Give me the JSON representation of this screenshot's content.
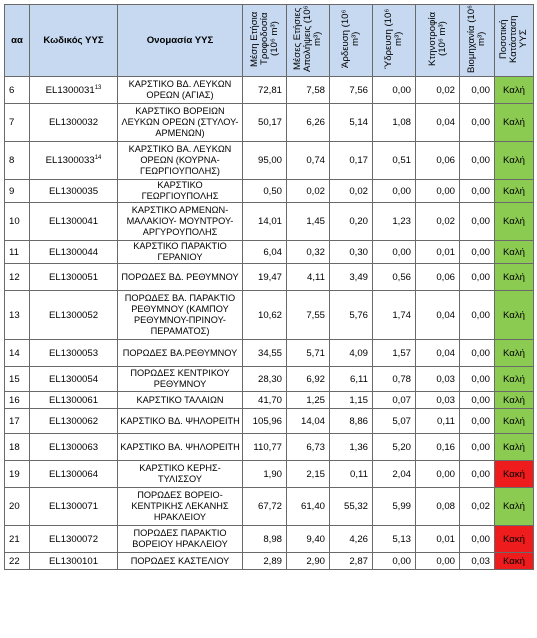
{
  "headers": {
    "aa": "αα",
    "code": "Κωδικός ΥΥΣ",
    "name": "Ονομασία ΥΥΣ",
    "recharge": "Μέση Ετήσια Τροφοδοσία (10⁶ m³)",
    "abstraction": "Μέσες Ετήσιες Απολήψεις (10⁶ m³)",
    "irrigation": "Άρδευση (10⁶ m³)",
    "water_supply": "Ύδρευση (10⁶ m³)",
    "livestock": "Κτηνοτροφία (10⁶ m³)",
    "industry": "Βιομηχανία (10⁶ m³)",
    "status": "Ποσοτική Κατάσταση ΥΥΣ"
  },
  "status_colors": {
    "good": "#8ccb52",
    "bad": "#ee1c1c"
  },
  "rows": [
    {
      "aa": "6",
      "code": "EL1300031",
      "sup": "13",
      "name": "ΚΑΡΣΤΙΚΟ ΒΔ. ΛΕΥΚΩΝ ΟΡΕΩΝ (ΑΓΙΑΣ)",
      "recharge": "72,81",
      "abstraction": "7,58",
      "irrigation": "7,56",
      "water_supply": "0,00",
      "livestock": "0,02",
      "industry": "0,00",
      "status": "Καλή",
      "state": "good"
    },
    {
      "aa": "7",
      "code": "EL1300032",
      "sup": "",
      "name": "ΚΑΡΣΤΙΚΟ ΒΟΡΕΙΩΝ ΛΕΥΚΩΝ ΟΡΕΩΝ (ΣΤΥΛΟΥ-ΑΡΜΕΝΩΝ)",
      "recharge": "50,17",
      "abstraction": "6,26",
      "irrigation": "5,14",
      "water_supply": "1,08",
      "livestock": "0,04",
      "industry": "0,00",
      "status": "Καλή",
      "state": "good"
    },
    {
      "aa": "8",
      "code": "EL1300033",
      "sup": "14",
      "name": "ΚΑΡΣΤΙΚΟ ΒΑ. ΛΕΥΚΩΝ ΟΡΕΩΝ (ΚΟΥΡΝΑ-ΓΕΩΡΓΙΟΥΠΟΛΗΣ)",
      "recharge": "95,00",
      "abstraction": "0,74",
      "irrigation": "0,17",
      "water_supply": "0,51",
      "livestock": "0,06",
      "industry": "0,00",
      "status": "Καλή",
      "state": "good"
    },
    {
      "aa": "9",
      "code": "EL1300035",
      "sup": "",
      "name": "ΚΑΡΣΤΙΚΟ ΓΕΩΡΓΙΟΥΠΟΛΗΣ",
      "recharge": "0,50",
      "abstraction": "0,02",
      "irrigation": "0,02",
      "water_supply": "0,00",
      "livestock": "0,00",
      "industry": "0,00",
      "status": "Καλή",
      "state": "good"
    },
    {
      "aa": "10",
      "code": "EL1300041",
      "sup": "",
      "name": "ΚΑΡΣΤΙΚΟ ΑΡΜΕΝΩΝ-ΜΑΛΑΚΙΟΥ- ΜΟΥΝΤΡΟΥ-ΑΡΓΥΡΟΥΠΟΛΗΣ",
      "recharge": "14,01",
      "abstraction": "1,45",
      "irrigation": "0,20",
      "water_supply": "1,23",
      "livestock": "0,02",
      "industry": "0,00",
      "status": "Καλή",
      "state": "good"
    },
    {
      "aa": "11",
      "code": "EL1300044",
      "sup": "",
      "name": "ΚΑΡΣΤΙΚΟ ΠΑΡΑΚΤΙΟ ΓΕΡΑΝΙΟΥ",
      "recharge": "6,04",
      "abstraction": "0,32",
      "irrigation": "0,30",
      "water_supply": "0,00",
      "livestock": "0,01",
      "industry": "0,00",
      "status": "Καλή",
      "state": "good"
    },
    {
      "aa": "12",
      "code": "EL1300051",
      "sup": "",
      "name": "ΠΟΡΩΔΕΣ ΒΔ. ΡΕΘΥΜΝΟΥ",
      "recharge": "19,47",
      "abstraction": "4,11",
      "irrigation": "3,49",
      "water_supply": "0,56",
      "livestock": "0,06",
      "industry": "0,00",
      "status": "Καλή",
      "state": "good"
    },
    {
      "aa": "13",
      "code": "EL1300052",
      "sup": "",
      "name": "ΠΟΡΩΔΕΣ ΒΑ. ΠΑΡΑΚΤΙΟ ΡΕΘΥΜΝΟΥ (ΚΑΜΠΟΥ ΡΕΘΥΜΝΟΥ-ΠΡΙΝΟΥ-ΠΕΡΑΜΑΤΟΣ)",
      "recharge": "10,62",
      "abstraction": "7,55",
      "irrigation": "5,76",
      "water_supply": "1,74",
      "livestock": "0,04",
      "industry": "0,00",
      "status": "Καλή",
      "state": "good"
    },
    {
      "aa": "14",
      "code": "EL1300053",
      "sup": "",
      "name": "ΠΟΡΩΔΕΣ ΒΑ.ΡΕΘΥΜΝΟΥ",
      "recharge": "34,55",
      "abstraction": "5,71",
      "irrigation": "4,09",
      "water_supply": "1,57",
      "livestock": "0,04",
      "industry": "0,00",
      "status": "Καλή",
      "state": "good"
    },
    {
      "aa": "15",
      "code": "EL1300054",
      "sup": "",
      "name": "ΠΟΡΩΔΕΣ ΚΕΝΤΡΙΚΟΥ ΡΕΘΥΜΝΟΥ",
      "recharge": "28,30",
      "abstraction": "6,92",
      "irrigation": "6,11",
      "water_supply": "0,78",
      "livestock": "0,03",
      "industry": "0,00",
      "status": "Καλή",
      "state": "good"
    },
    {
      "aa": "16",
      "code": "EL1300061",
      "sup": "",
      "name": "ΚΑΡΣΤΙΚΟ ΤΑΛΑΙΩΝ",
      "recharge": "41,70",
      "abstraction": "1,25",
      "irrigation": "1,15",
      "water_supply": "0,07",
      "livestock": "0,03",
      "industry": "0,00",
      "status": "Καλή",
      "state": "good"
    },
    {
      "aa": "17",
      "code": "EL1300062",
      "sup": "",
      "name": "ΚΑΡΣΤΙΚΟ ΒΔ. ΨΗΛΟΡΕΙΤΗ",
      "recharge": "105,96",
      "abstraction": "14,04",
      "irrigation": "8,86",
      "water_supply": "5,07",
      "livestock": "0,11",
      "industry": "0,00",
      "status": "Καλή",
      "state": "good"
    },
    {
      "aa": "18",
      "code": "EL1300063",
      "sup": "",
      "name": "ΚΑΡΣΤΙΚΟ ΒΑ. ΨΗΛΟΡΕΙΤΗ",
      "recharge": "110,77",
      "abstraction": "6,73",
      "irrigation": "1,36",
      "water_supply": "5,20",
      "livestock": "0,16",
      "industry": "0,00",
      "status": "Καλή",
      "state": "good"
    },
    {
      "aa": "19",
      "code": "EL1300064",
      "sup": "",
      "name": "ΚΑΡΣΤΙΚΟ ΚΕΡΗΣ-ΤΥΛΙΣΣΟΥ",
      "recharge": "1,90",
      "abstraction": "2,15",
      "irrigation": "0,11",
      "water_supply": "2,04",
      "livestock": "0,00",
      "industry": "0,00",
      "status": "Κακή",
      "state": "bad"
    },
    {
      "aa": "20",
      "code": "EL1300071",
      "sup": "",
      "name": "ΠΟΡΩΔΕΣ ΒΟΡΕΙΟ-ΚΕΝΤΡΙΚΗΣ ΛΕΚΑΝΗΣ ΗΡΑΚΛΕΙΟΥ",
      "recharge": "67,72",
      "abstraction": "61,40",
      "irrigation": "55,32",
      "water_supply": "5,99",
      "livestock": "0,08",
      "industry": "0,02",
      "status": "Καλή",
      "state": "good"
    },
    {
      "aa": "21",
      "code": "EL1300072",
      "sup": "",
      "name": "ΠΟΡΩΔΕΣ ΠΑΡΑΚΤΙΟ ΒΟΡΕΙΟΥ ΗΡΑΚΛΕΙΟΥ",
      "recharge": "8,98",
      "abstraction": "9,40",
      "irrigation": "4,26",
      "water_supply": "5,13",
      "livestock": "0,01",
      "industry": "0,00",
      "status": "Κακή",
      "state": "bad"
    },
    {
      "aa": "22",
      "code": "EL1300101",
      "sup": "",
      "name": "ΠΟΡΩΔΕΣ ΚΑΣΤΕΛΙΟΥ",
      "recharge": "2,89",
      "abstraction": "2,90",
      "irrigation": "2,87",
      "water_supply": "0,00",
      "livestock": "0,00",
      "industry": "0,03",
      "status": "Κακή",
      "state": "bad"
    }
  ]
}
